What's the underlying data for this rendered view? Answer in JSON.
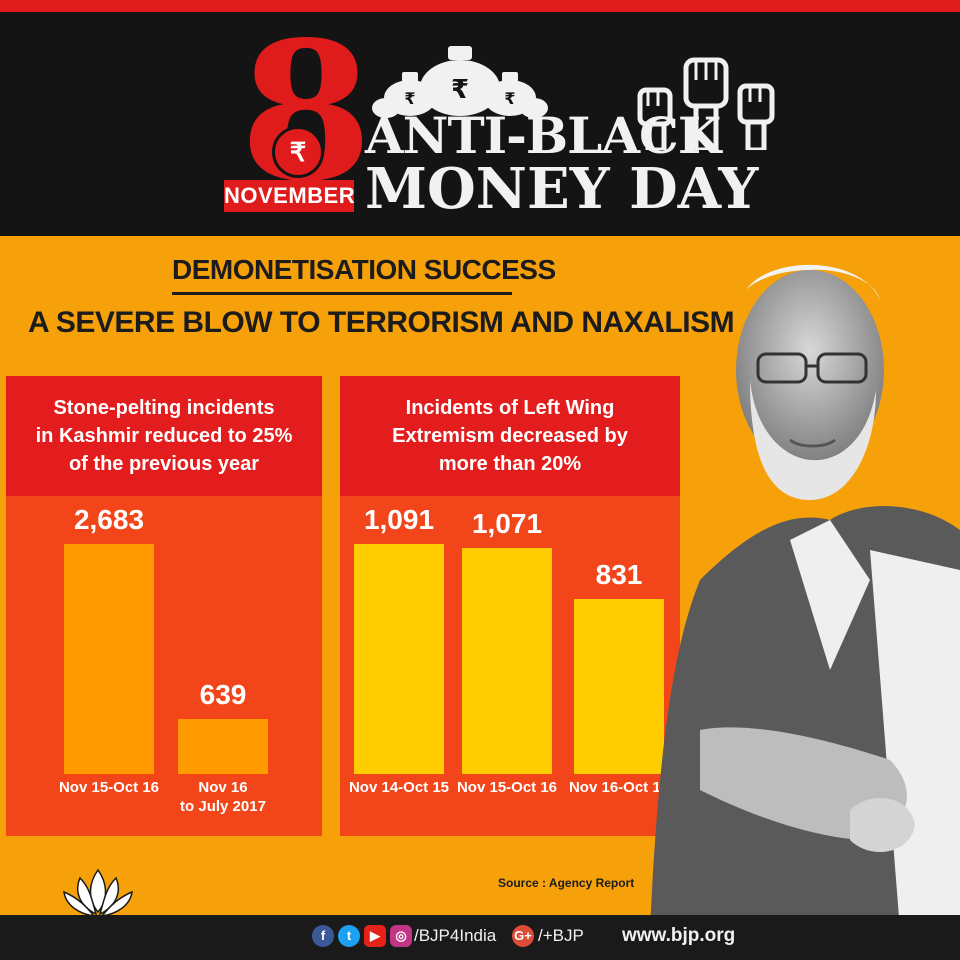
{
  "header": {
    "day_number": "8",
    "month": "NOVEMBER",
    "rupee_symbol": "₹",
    "title_line1": "ANTI-BLACK",
    "title_line2": "MONEY DAY"
  },
  "headings": {
    "line1_part1": "DEMONETISATION ",
    "line1_part2": "SUCCESS",
    "line2": "A SEVERE BLOW TO TERRORISM AND NAXALISM"
  },
  "chart_data": [
    {
      "type": "bar",
      "title": "Stone-pelting incidents in Kashmir reduced to 25% of the previous year",
      "categories": [
        "Nov 15-Oct 16",
        "Nov 16 to July 2017"
      ],
      "values": [
        2683,
        639
      ],
      "value_labels": [
        "2,683",
        "639"
      ],
      "category_lines": [
        [
          "Nov 15-Oct 16"
        ],
        [
          "Nov 16",
          "to July 2017"
        ]
      ],
      "title_lines": [
        "Stone-pelting incidents",
        "in Kashmir reduced to 25%",
        "of the previous year"
      ],
      "color": "#ff9a00"
    },
    {
      "type": "bar",
      "title": "Incidents of Left Wing Extremism decreased by more than 20%",
      "categories": [
        "Nov 14-Oct 15",
        "Nov 15-Oct 16",
        "Nov 16-Oct 17"
      ],
      "values": [
        1091,
        1071,
        831
      ],
      "value_labels": [
        "1,091",
        "1,071",
        "831"
      ],
      "category_lines": [
        [
          "Nov 14-Oct 15"
        ],
        [
          "Nov 15-Oct 16"
        ],
        [
          "Nov 16-Oct 17"
        ]
      ],
      "title_lines": [
        "Incidents of Left Wing",
        "Extremism decreased by",
        "more than 20%"
      ],
      "color": "#ffcc00"
    }
  ],
  "source": "Source : Agency Report",
  "footer": {
    "handle": "/BJP4India",
    "gplus_handle": "/+BJP",
    "website": "www.bjp.org",
    "icons": [
      "facebook-icon",
      "twitter-icon",
      "youtube-icon",
      "instagram-icon",
      "google-plus-icon"
    ]
  },
  "colors": {
    "background": "#f7a10a",
    "header": "#141414",
    "accent_red": "#e01b1b",
    "panel": "#f2461a",
    "panel_head": "#e31d1d",
    "bar_stone": "#ff9a00",
    "bar_lwe": "#ffcc00"
  }
}
